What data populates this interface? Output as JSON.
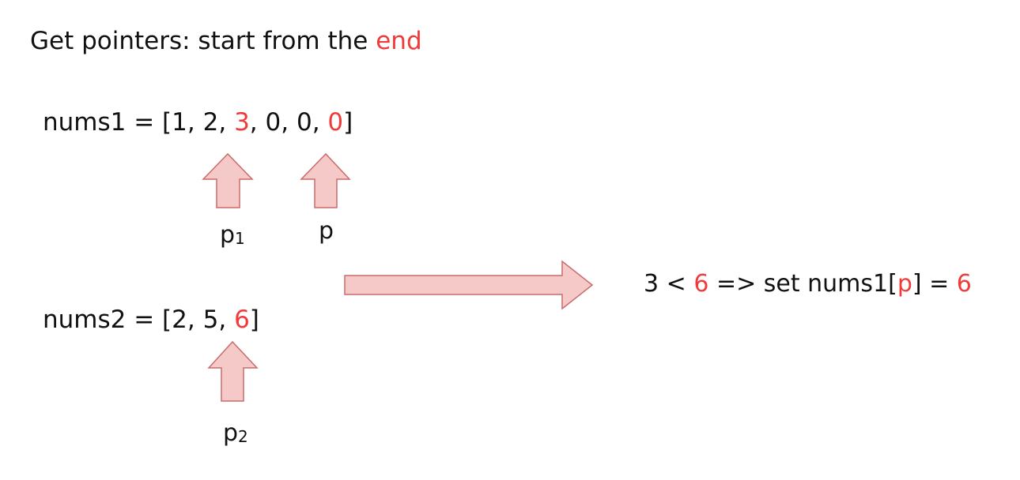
{
  "title": {
    "prefix": "Get pointers: start from the ",
    "highlight": "end"
  },
  "nums1": {
    "name": "nums1",
    "values": [
      "1",
      "2",
      "3",
      "0",
      "0",
      "0"
    ],
    "highlighted_indices": [
      2,
      5
    ]
  },
  "nums2": {
    "name": "nums2",
    "values": [
      "2",
      "5",
      "6"
    ],
    "highlighted_indices": [
      2
    ]
  },
  "pointers": {
    "p1": {
      "base": "p",
      "subscript": "1"
    },
    "p": {
      "base": "p"
    },
    "p2": {
      "base": "p",
      "subscript": "2"
    }
  },
  "result": {
    "left": "3",
    "op": " < ",
    "right": "6",
    "arrow": " => set ",
    "target": "nums1[",
    "index": "p",
    "close": "] = ",
    "value": "6"
  },
  "colors": {
    "highlight": "#f03b3b",
    "arrow_fill": "#f6c9c9",
    "arrow_stroke": "#c96b6b",
    "text": "#111111"
  },
  "icons": [
    "up-arrow-icon",
    "right-arrow-icon"
  ]
}
